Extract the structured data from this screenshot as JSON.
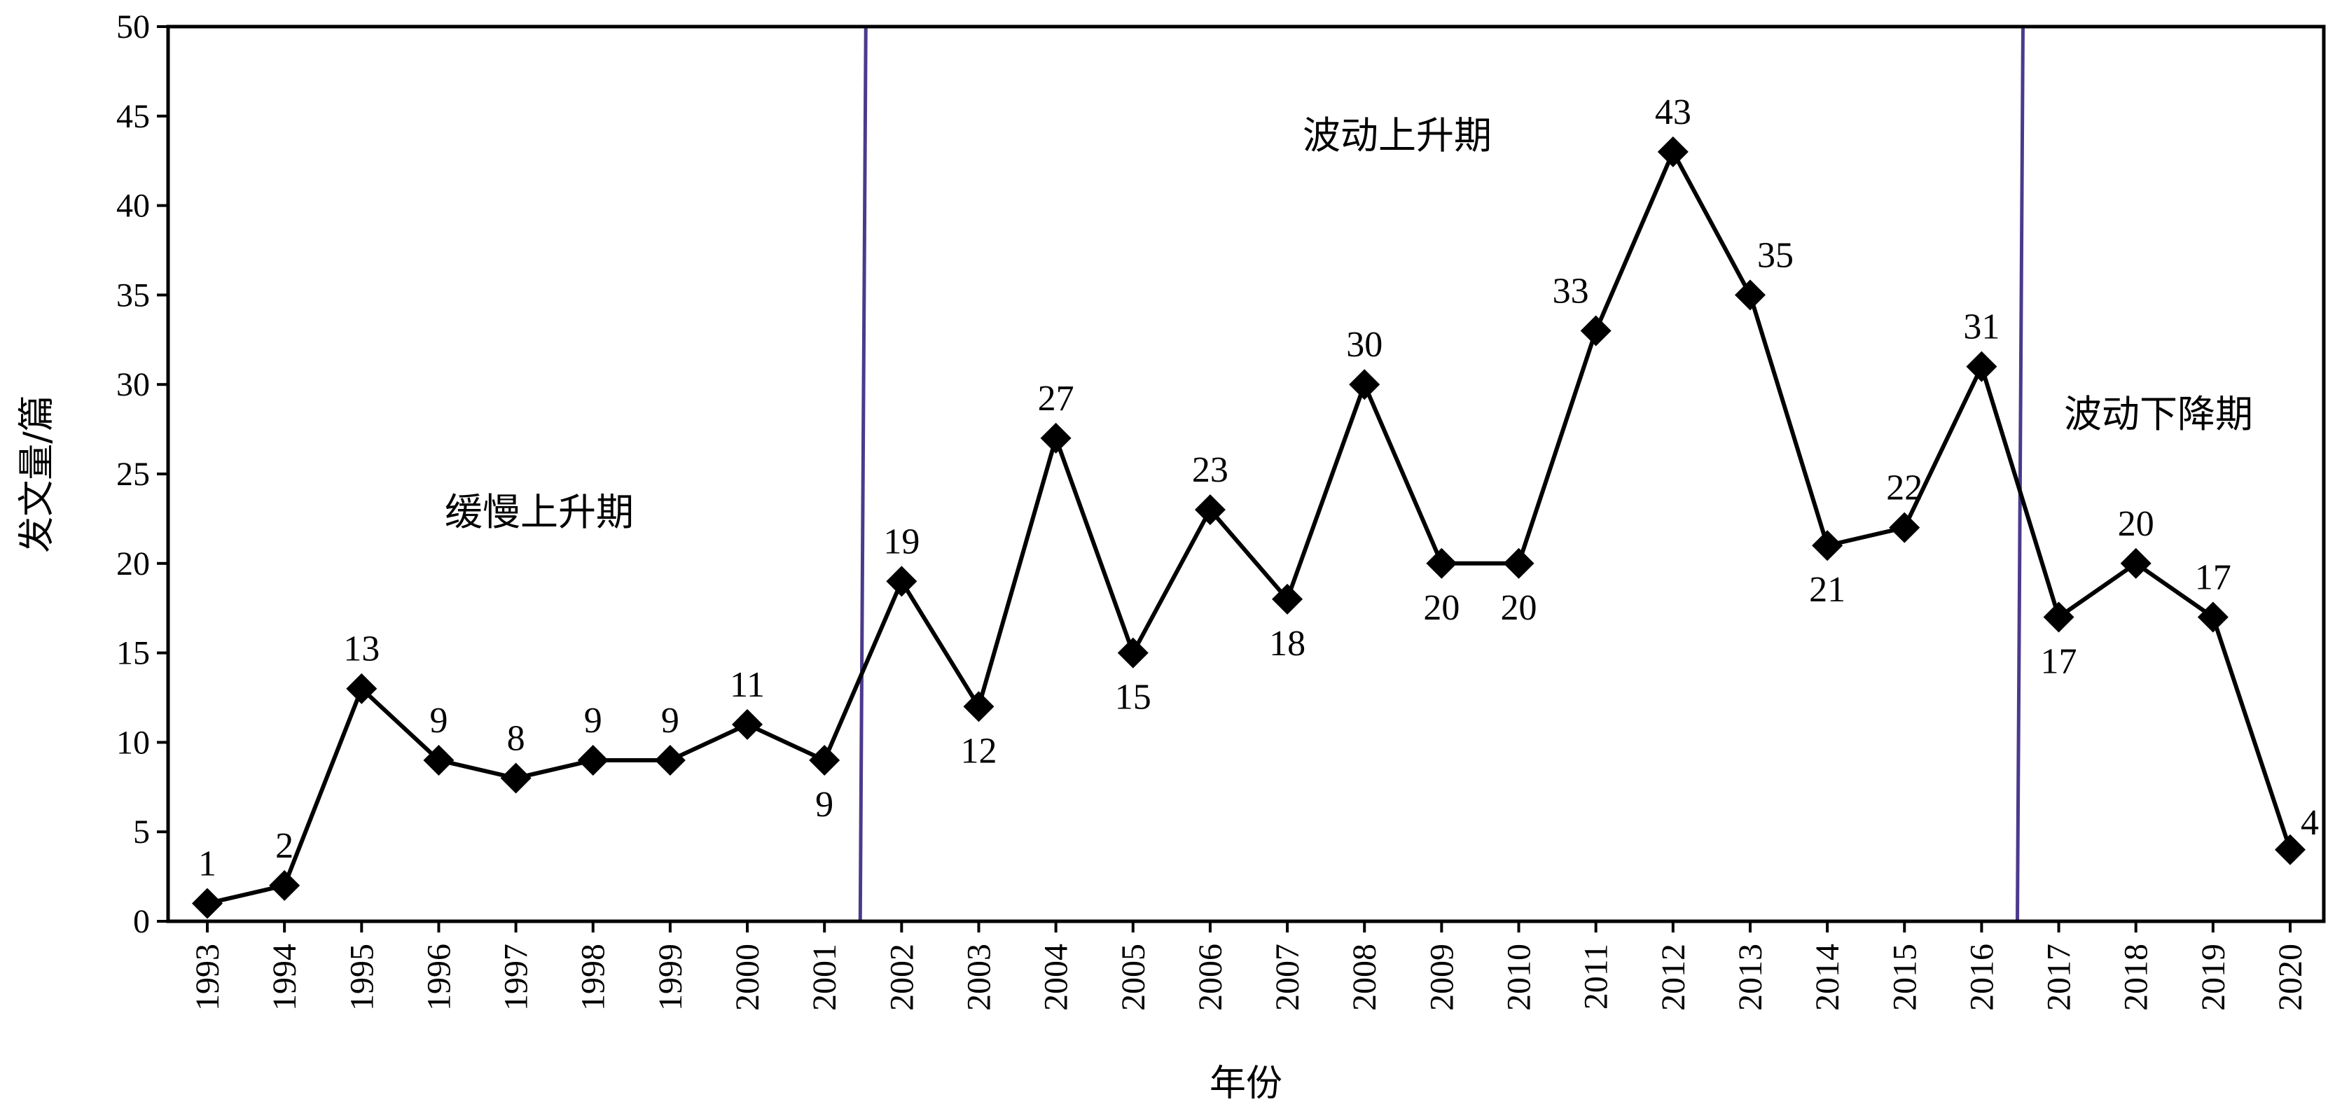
{
  "chart_data": {
    "type": "line",
    "title": "",
    "xlabel": "年份",
    "ylabel": "发文量/篇",
    "ylim": [
      0,
      50
    ],
    "yticks": [
      0,
      5,
      10,
      15,
      20,
      25,
      30,
      35,
      40,
      45,
      50
    ],
    "categories": [
      "1993",
      "1994",
      "1995",
      "1996",
      "1997",
      "1998",
      "1999",
      "2000",
      "2001",
      "2002",
      "2003",
      "2004",
      "2005",
      "2006",
      "2007",
      "2008",
      "2009",
      "2010",
      "2011",
      "2012",
      "2013",
      "2014",
      "2015",
      "2016",
      "2017",
      "2018",
      "2019",
      "2020"
    ],
    "series": [
      {
        "values": [
          1,
          2,
          13,
          9,
          8,
          9,
          9,
          11,
          9,
          19,
          12,
          27,
          15,
          23,
          18,
          30,
          20,
          20,
          33,
          43,
          35,
          21,
          22,
          31,
          17,
          20,
          17,
          4
        ],
        "color": "#000000",
        "marker": "diamond"
      }
    ],
    "data_label_positions": [
      "above",
      "above",
      "above",
      "above",
      "above",
      "above",
      "above",
      "above",
      "below",
      "above",
      "below",
      "above",
      "below",
      "above",
      "below",
      "above",
      "below",
      "below",
      "left-above",
      "above",
      "right-above",
      "below",
      "above",
      "above",
      "below",
      "above",
      "above",
      "right"
    ],
    "phases": [
      {
        "name": "缓慢上升期",
        "from": "1993",
        "to": "2001"
      },
      {
        "name": "波动上升期",
        "from": "2002",
        "to": "2016"
      },
      {
        "name": "波动下降期",
        "from": "2017",
        "to": "2020"
      }
    ],
    "divider_color": "#4b3a8c",
    "grid": false,
    "legend": "none"
  }
}
